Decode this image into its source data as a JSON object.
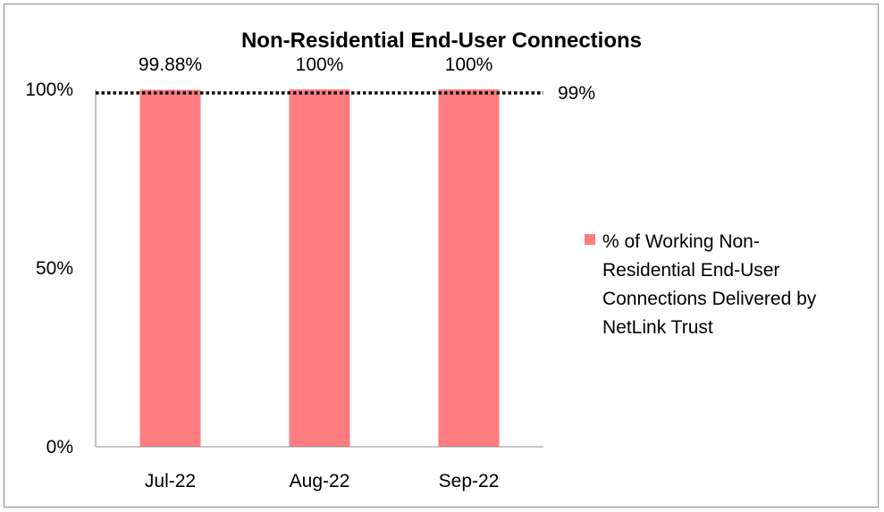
{
  "chart_data": {
    "type": "bar",
    "title": "Non-Residential End-User Connections",
    "categories": [
      "Jul-22",
      "Aug-22",
      "Sep-22"
    ],
    "series": [
      {
        "name": "% of Working Non-Residential End-User Connections Delivered by NetLink Trust",
        "values": [
          99.88,
          100,
          100
        ],
        "data_labels": [
          "99.88%",
          "100%",
          "100%"
        ],
        "color": "#ff7c80"
      }
    ],
    "reference_line": {
      "value": 99,
      "label": "99%",
      "style": "dotted",
      "color": "#000000"
    },
    "ylim": [
      0,
      100
    ],
    "yticks": [
      {
        "value": 0,
        "label": "0%"
      },
      {
        "value": 50,
        "label": "50%"
      },
      {
        "value": 100,
        "label": "100%"
      }
    ],
    "xlabel": "",
    "ylabel": "",
    "grid": false,
    "legend_position": "right",
    "legend_lines": [
      "% of Working Non-",
      "Residential End-User",
      "Connections Delivered by",
      "NetLink Trust"
    ]
  }
}
